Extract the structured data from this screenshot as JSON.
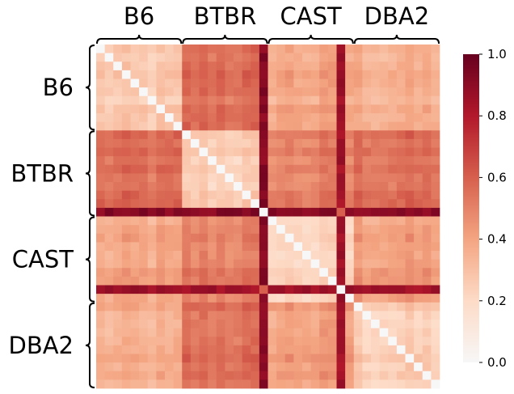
{
  "chart_data": {
    "type": "heatmap",
    "title": "",
    "groups": [
      "B6",
      "BTBR",
      "CAST",
      "DBA2"
    ],
    "group_size": 10,
    "colorbar": {
      "min": 0.0,
      "max": 1.0,
      "ticks": [
        "0.0",
        "0.2",
        "0.4",
        "0.6",
        "0.8",
        "1.0"
      ],
      "colormap": "Reds",
      "colors": [
        "#f7f7f7",
        "#fddbc7",
        "#f4a582",
        "#d6604d",
        "#b2182b",
        "#67001f"
      ]
    },
    "diagonal_value": 0.0,
    "outlier_samples": [
      {
        "group": "BTBR",
        "index": 9,
        "typical_distance": 0.92
      },
      {
        "group": "CAST",
        "index": 8,
        "typical_distance": 0.85
      }
    ],
    "mean_distance_matrix": [
      [
        0.25,
        0.55,
        0.38,
        0.35
      ],
      [
        0.55,
        0.25,
        0.5,
        0.55
      ],
      [
        0.38,
        0.5,
        0.22,
        0.42
      ],
      [
        0.35,
        0.55,
        0.42,
        0.25
      ]
    ]
  }
}
